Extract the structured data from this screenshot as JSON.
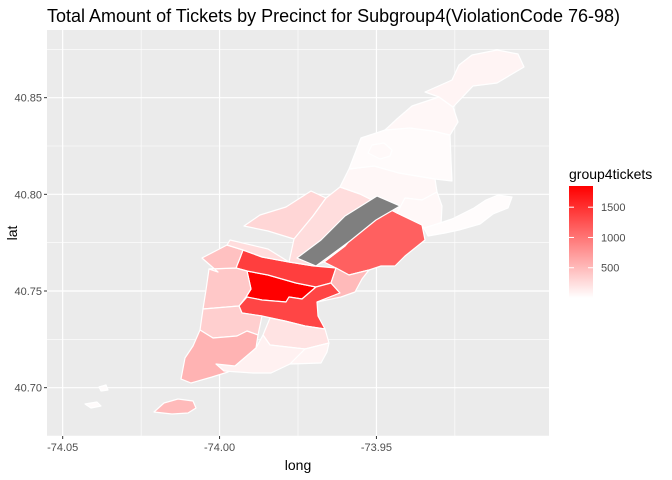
{
  "chart_data": {
    "type": "choropleth-map",
    "title": "Total Amount of Tickets by Precinct for Subgroup4(ViolationCode 76-98)",
    "xlabel": "long",
    "ylabel": "lat",
    "x_ticks": [
      "-74.05",
      "-74.00",
      "-73.95"
    ],
    "y_ticks": [
      "40.70",
      "40.75",
      "40.80",
      "40.85"
    ],
    "xlim": [
      -74.055,
      -73.895
    ],
    "ylim": [
      40.675,
      40.885
    ],
    "grid": true,
    "legend": {
      "title": "group4tickets",
      "placement": "right",
      "breaks": [
        "1500",
        "1000",
        "500"
      ],
      "break_values": [
        1500,
        1000,
        500
      ],
      "range": [
        0,
        1850
      ],
      "low_color": "#ffffff",
      "high_color": "#ff0000"
    },
    "na_color": "#7f7f7f",
    "regions": [
      {
        "value": 1850
      },
      {
        "value": 1400
      },
      {
        "value": 1350
      },
      {
        "value": 1150
      },
      {
        "value": 400
      },
      {
        "value": 350
      },
      {
        "value": 450
      },
      {
        "value": 300
      },
      {
        "value": 250
      },
      {
        "value": 250
      },
      {
        "value": 500
      },
      {
        "value": 200
      },
      {
        "value": 550
      },
      {
        "value": 100
      },
      {
        "value": 80
      },
      {
        "value": 60
      },
      {
        "value": 50
      },
      {
        "value": 30
      },
      {
        "value": 60
      },
      {
        "value": 80
      },
      {
        "value": 20
      },
      {
        "value": 40
      },
      {
        "value": 500
      },
      {
        "value": 30
      },
      {
        "value": 20
      },
      {
        "value": null
      }
    ]
  }
}
